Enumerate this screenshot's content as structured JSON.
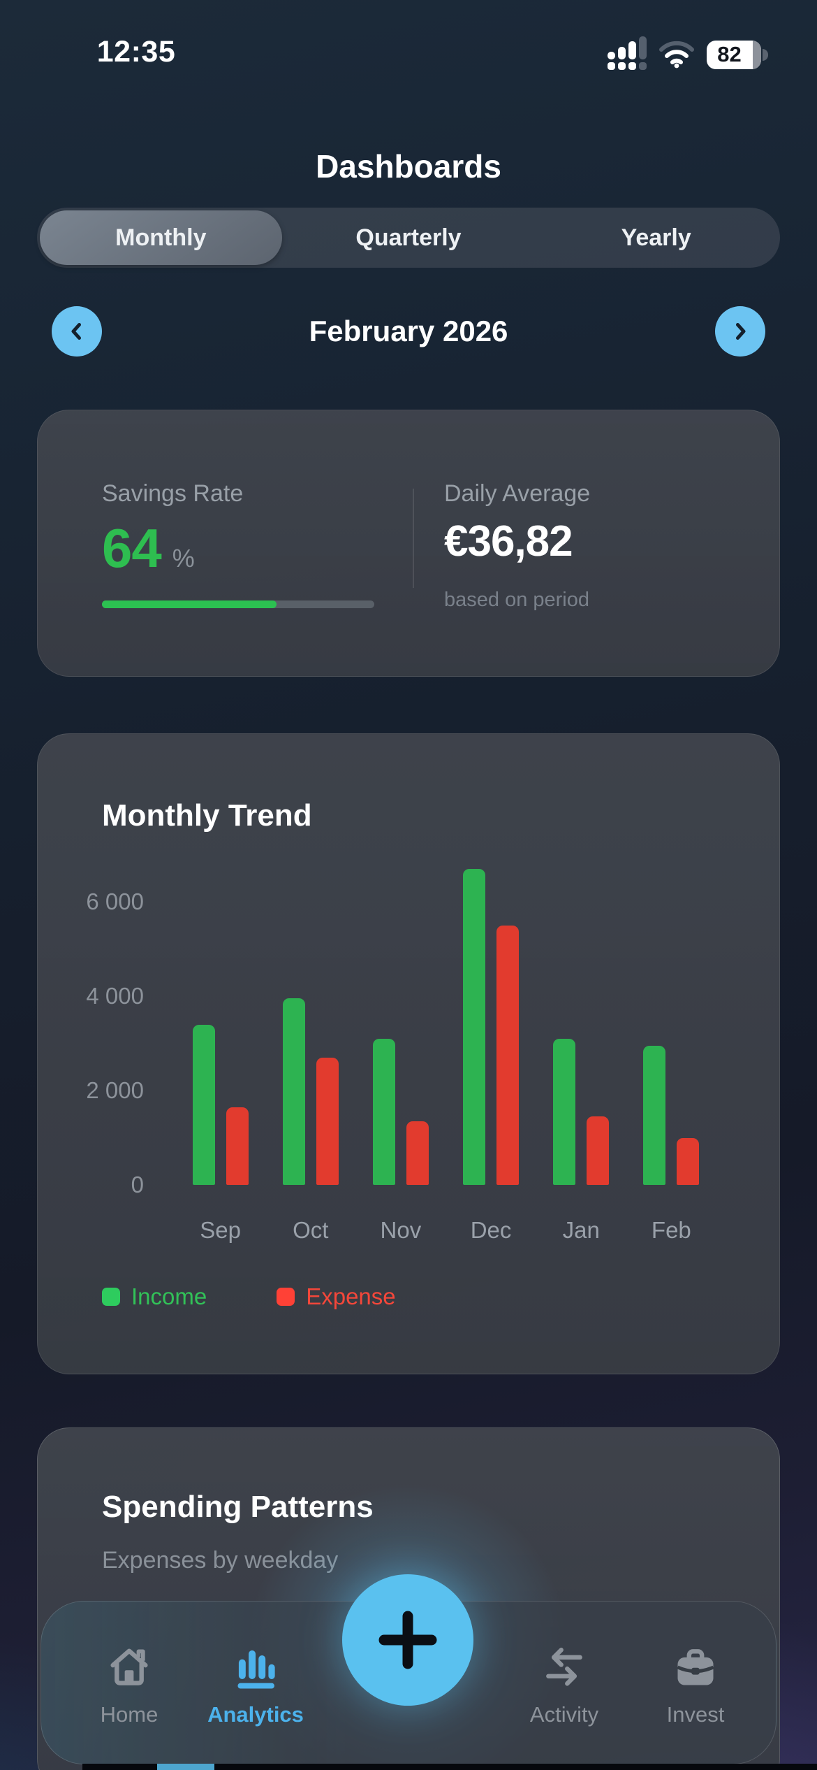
{
  "status_bar": {
    "time": "12:35",
    "battery_percent": "82"
  },
  "header": {
    "title": "Dashboards"
  },
  "period_selector": {
    "options": [
      {
        "label": "Monthly",
        "selected": true
      },
      {
        "label": "Quarterly",
        "selected": false
      },
      {
        "label": "Yearly",
        "selected": false
      }
    ]
  },
  "date_nav": {
    "label": "February 2026",
    "prev_icon": "chevron-left-icon",
    "next_icon": "chevron-right-icon"
  },
  "summary_card": {
    "savings_rate": {
      "label": "Savings Rate",
      "value": "64",
      "unit": "%",
      "progress_percent": 64
    },
    "daily_average": {
      "label": "Daily Average",
      "value": "€36,82",
      "caption": "based on period"
    }
  },
  "trend_card": {
    "title": "Monthly Trend"
  },
  "chart_data": {
    "type": "bar",
    "title": "Monthly Trend",
    "categories": [
      "Sep",
      "Oct",
      "Nov",
      "Dec",
      "Jan",
      "Feb"
    ],
    "series": [
      {
        "name": "Income",
        "color": "#2db351",
        "values": [
          3400,
          3950,
          3100,
          6700,
          3100,
          2950
        ]
      },
      {
        "name": "Expense",
        "color": "#e23b2e",
        "values": [
          1650,
          2700,
          1350,
          5500,
          1450,
          1000
        ]
      }
    ],
    "ylim": [
      0,
      6950
    ],
    "yticks": [
      0,
      2000,
      4000,
      6000
    ],
    "ytick_labels": [
      "0",
      "2 000",
      "4 000",
      "6 000"
    ],
    "xlabel": "",
    "ylabel": "",
    "grid": false,
    "legend_position": "bottom-left",
    "legend": [
      {
        "label": "Income",
        "color": "#2ecc5e",
        "text_color": "#32c158"
      },
      {
        "label": "Expense",
        "color": "#ff4136",
        "text_color": "#f4473a"
      }
    ]
  },
  "spending_card": {
    "title": "Spending Patterns",
    "subtitle": "Expenses by weekday"
  },
  "tab_bar": {
    "items": [
      {
        "label": "Home",
        "icon": "home-icon",
        "selected": false
      },
      {
        "label": "Analytics",
        "icon": "analytics-icon",
        "selected": true
      },
      {
        "label": "Activity",
        "icon": "activity-icon",
        "selected": false
      },
      {
        "label": "Invest",
        "icon": "invest-icon",
        "selected": false
      }
    ],
    "selected_color": "#4cb2ec",
    "unselected_color": "#8d939b"
  },
  "fab": {
    "icon": "plus-icon",
    "color": "#5ac1ef"
  },
  "colors": {
    "accent_blue": "#5ac1ef",
    "income_green": "#2db351",
    "expense_red": "#e23b2e",
    "progress_green": "#2cc251",
    "card_bg": "#3a3e46"
  }
}
